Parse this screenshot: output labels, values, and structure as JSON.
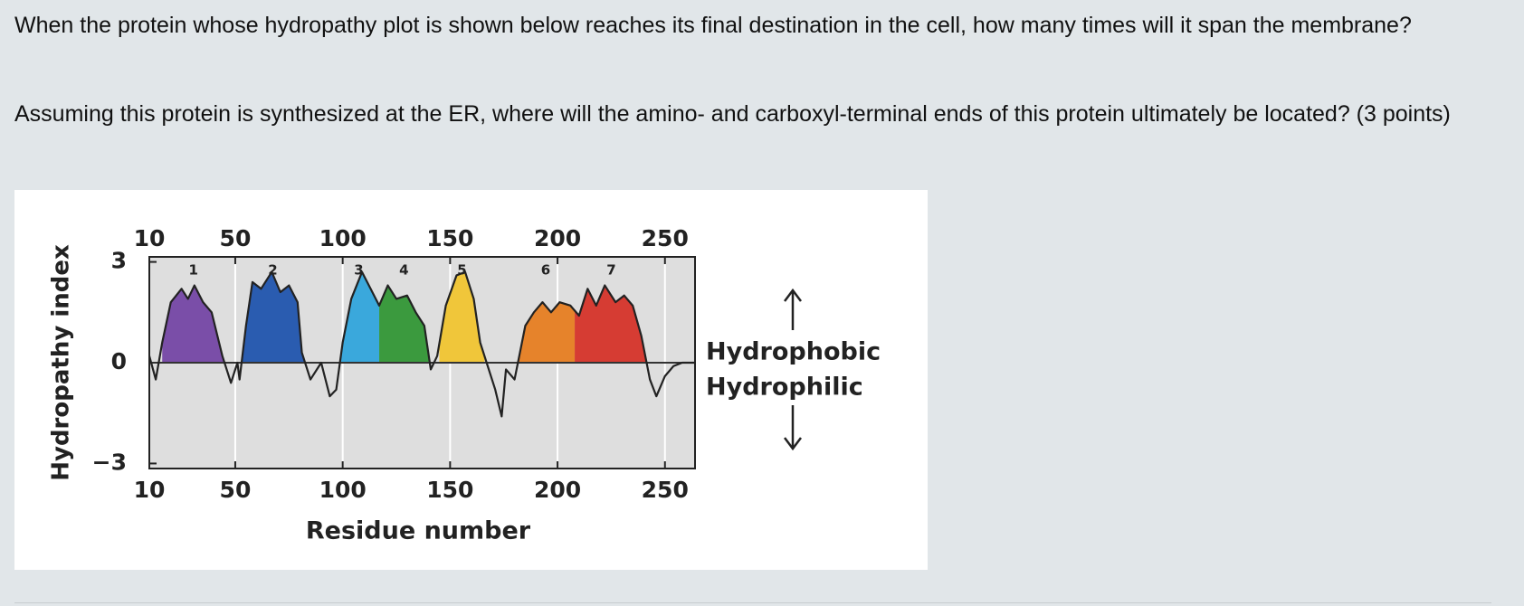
{
  "question": {
    "paragraphs": [
      "When the protein whose hydropathy plot is shown below reaches its final destination in the cell, how many times will it span the membrane?",
      "Assuming this protein is synthesized at the ER, where will the amino- and carboxyl-terminal ends of this protein ultimately be located? (3 points)"
    ]
  },
  "chart_data": {
    "type": "area",
    "ylabel": "Hydropathy index",
    "xlabel": "Residue number",
    "hydrophobic": "Hydrophobic",
    "hydrophilic": "Hydrophilic",
    "xlim": [
      10,
      264
    ],
    "ylim": [
      -3.15,
      3.15
    ],
    "xticks": [
      10,
      50,
      100,
      150,
      200,
      250
    ],
    "yticks": [
      {
        "value": -3,
        "label": "−3"
      },
      0,
      3
    ],
    "grid": true,
    "color": "#222222",
    "x": [
      10,
      13,
      16,
      20,
      25,
      28,
      31,
      35,
      39,
      44,
      46,
      48,
      51,
      52,
      55,
      58,
      62,
      67,
      71,
      75,
      79,
      81,
      85,
      90,
      94,
      97,
      100,
      104,
      109,
      113,
      117,
      121,
      125,
      130,
      134,
      138,
      141,
      144,
      148,
      153,
      157,
      161,
      164,
      168,
      171,
      174,
      176,
      180,
      185,
      189,
      193,
      197,
      201,
      206,
      210,
      214,
      218,
      222,
      227,
      231,
      235,
      239,
      243,
      246,
      250,
      254,
      258,
      264
    ],
    "values": [
      0.2,
      -0.5,
      0.6,
      1.8,
      2.2,
      1.9,
      2.3,
      1.8,
      1.5,
      0.2,
      -0.2,
      -0.6,
      0.0,
      -0.5,
      1.1,
      2.4,
      2.2,
      2.7,
      2.1,
      2.3,
      1.8,
      0.3,
      -0.5,
      0.0,
      -1.0,
      -0.8,
      0.6,
      1.9,
      2.7,
      2.2,
      1.7,
      2.3,
      1.9,
      2.0,
      1.5,
      1.1,
      -0.2,
      0.2,
      1.7,
      2.6,
      2.7,
      1.9,
      0.6,
      -0.2,
      -0.8,
      -1.6,
      -0.2,
      -0.5,
      1.1,
      1.5,
      1.8,
      1.5,
      1.8,
      1.7,
      1.4,
      2.2,
      1.7,
      2.3,
      1.8,
      2.0,
      1.7,
      0.8,
      -0.5,
      -1.0,
      -0.4,
      -0.1,
      0.0,
      0.0
    ],
    "helices": [
      {
        "label": "1",
        "color": "#7a4ea8",
        "start": 16,
        "end": 45
      },
      {
        "label": "2",
        "color": "#2a5cb0",
        "start": 53,
        "end": 82
      },
      {
        "label": "3",
        "color": "#3aa8dc",
        "start": 98,
        "end": 117
      },
      {
        "label": "4",
        "color": "#3b9a3e",
        "start": 117,
        "end": 140
      },
      {
        "label": "5",
        "color": "#f0c63a",
        "start": 145,
        "end": 166
      },
      {
        "label": "6",
        "color": "#e6832b",
        "start": 181,
        "end": 208
      },
      {
        "label": "7",
        "color": "#d63c33",
        "start": 208,
        "end": 242
      }
    ]
  }
}
